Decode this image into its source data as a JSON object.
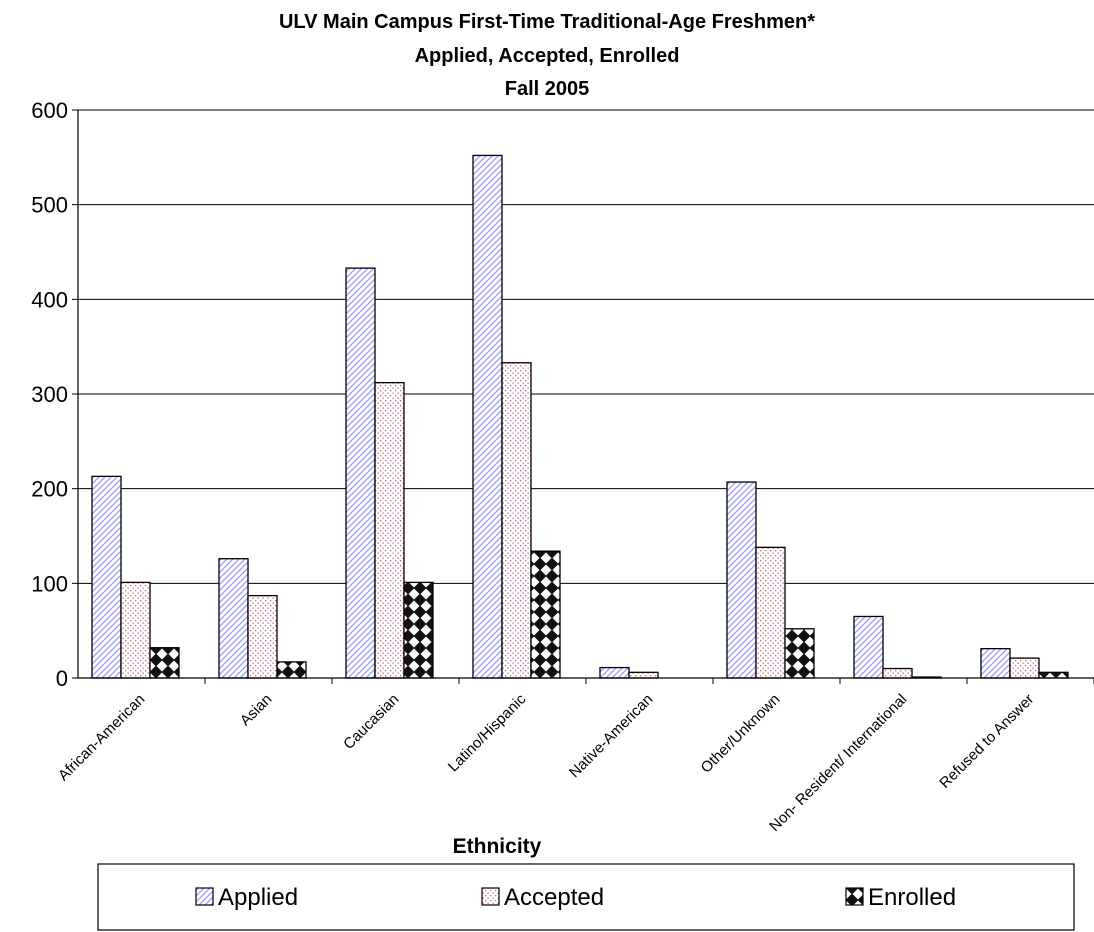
{
  "chart_data": {
    "type": "bar",
    "title": [
      "ULV Main Campus First-Time Traditional-Age Freshmen*",
      "Applied, Accepted, Enrolled",
      "Fall 2005"
    ],
    "xlabel": "Ethnicity",
    "ylabel": "",
    "ylim": [
      0,
      600
    ],
    "yticks": [
      "0",
      "100",
      "200",
      "300",
      "400",
      "500",
      "600"
    ],
    "grid": "horizontal",
    "legend_position": "bottom",
    "categories": [
      "African-American",
      "Asian",
      "Caucasian",
      "Latino/Hispanic",
      "Native-American",
      "Other/Unknown",
      "Non- Resident/ International",
      "Refused to Answer"
    ],
    "series": [
      {
        "name": "Applied",
        "values": [
          213,
          126,
          433,
          552,
          11,
          207,
          65,
          31
        ],
        "color": "#9999ff",
        "pattern": "diagonal-lines"
      },
      {
        "name": "Accepted",
        "values": [
          101,
          87,
          312,
          333,
          6,
          138,
          10,
          21
        ],
        "color": "#cc6677",
        "pattern": "dots"
      },
      {
        "name": "Enrolled",
        "values": [
          32,
          17,
          101,
          134,
          0,
          52,
          1,
          6
        ],
        "color": "#000000",
        "pattern": "checker-diamond"
      }
    ]
  }
}
